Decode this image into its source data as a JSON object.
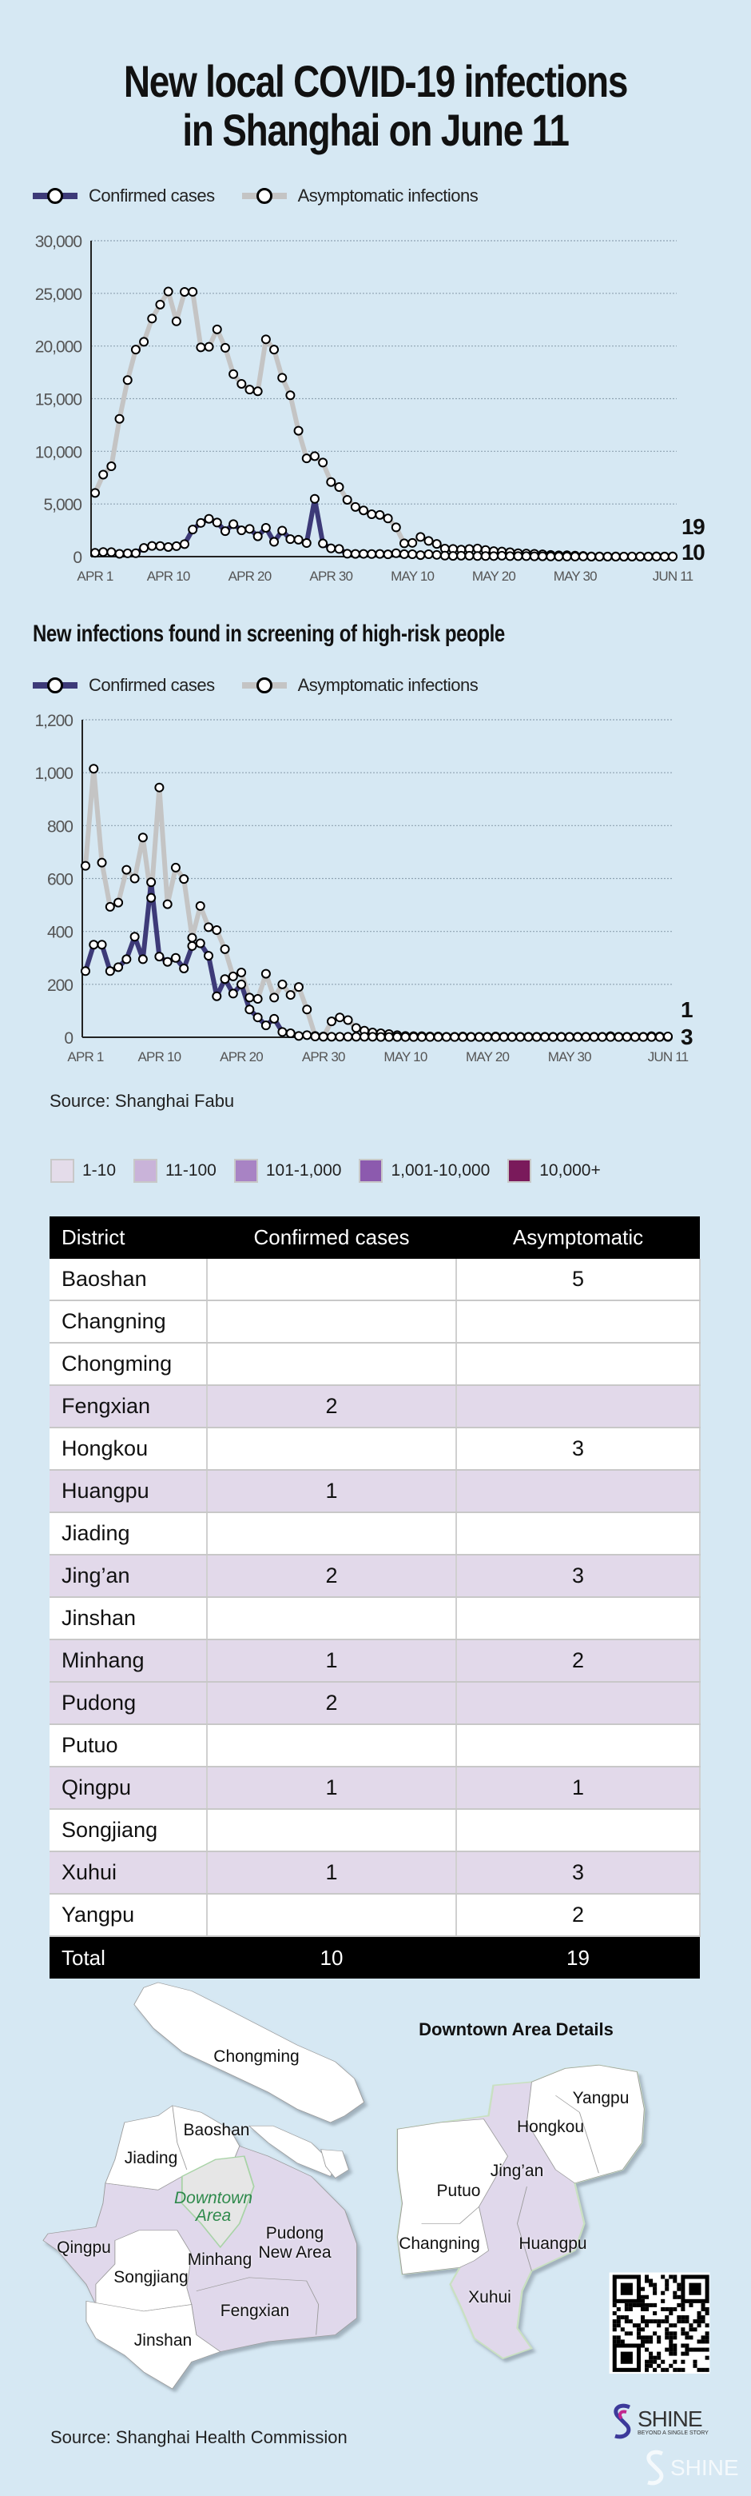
{
  "title": {
    "line1": "New local COVID-19 infections",
    "line2": "in Shanghai on June 11"
  },
  "legend": {
    "confirmed": "Confirmed cases",
    "asymptomatic": "Asymptomatic infections"
  },
  "colors": {
    "background": "#d6e8f3",
    "confirmed": "#3d3a78",
    "asymptomatic": "#c4c4c4",
    "shade_row": "#e2d9ea"
  },
  "chart_data": [
    {
      "type": "line",
      "title": "New local COVID-19 infections in Shanghai on June 11",
      "xlabel": "",
      "ylabel": "",
      "ylim": [
        0,
        30000
      ],
      "yticks": [
        "0",
        "5,000",
        "10,000",
        "15,000",
        "20,000",
        "25,000",
        "30,000"
      ],
      "ytick_values": [
        0,
        5000,
        10000,
        15000,
        20000,
        25000,
        30000
      ],
      "xticks": [
        {
          "label": "APR 1",
          "index": 0
        },
        {
          "label": "APR 10",
          "index": 9
        },
        {
          "label": "APR 20",
          "index": 19
        },
        {
          "label": "APR 30",
          "index": 29
        },
        {
          "label": "MAY 10",
          "index": 39
        },
        {
          "label": "MAY 20",
          "index": 49
        },
        {
          "label": "MAY 30",
          "index": 59
        },
        {
          "label": "JUN 11",
          "index": 71
        }
      ],
      "grid": true,
      "legend_position": "top-left",
      "x_range": "Apr 1 - Jun 11",
      "end_labels": [
        "19",
        "10"
      ],
      "series": [
        {
          "name": "Asymptomatic infections",
          "values": [
            6051,
            7788,
            8581,
            13086,
            16766,
            19660,
            20398,
            22609,
            23937,
            25173,
            22348,
            25141,
            25146,
            19872,
            19923,
            21582,
            19831,
            17332,
            16407,
            15861,
            15698,
            20634,
            19657,
            16983,
            15319,
            11956,
            9330,
            9545,
            8932,
            7084,
            6606,
            5395,
            4722,
            4390,
            4024,
            3961,
            3625,
            2780,
            1259,
            1305,
            1869,
            1487,
            1203,
            759,
            730,
            669,
            719,
            767,
            626,
            522,
            480,
            422,
            324,
            290,
            270,
            215,
            162,
            122,
            129,
            93,
            67,
            15,
            15,
            12,
            21,
            4,
            10,
            13,
            6,
            25,
            8,
            19
          ]
        },
        {
          "name": "Confirmed cases",
          "values": [
            358,
            438,
            425,
            268,
            311,
            322,
            824,
            1015,
            1006,
            914,
            994,
            1189,
            2573,
            3200,
            3590,
            3238,
            2417,
            3084,
            2494,
            2634,
            1931,
            2736,
            1401,
            2472,
            1661,
            1606,
            1292,
            5487,
            1249,
            788,
            727,
            274,
            260,
            261,
            245,
            253,
            215,
            322,
            234,
            228,
            144,
            227,
            166,
            96,
            69,
            87,
            82,
            55,
            58,
            52,
            84,
            45,
            48,
            44,
            29,
            31,
            20,
            7,
            10,
            8,
            15,
            4,
            1,
            2,
            4,
            3,
            6,
            11,
            4,
            9,
            4,
            10
          ]
        }
      ]
    },
    {
      "type": "line",
      "title": "New infections found in screening of high-risk people",
      "xlabel": "",
      "ylabel": "",
      "ylim": [
        0,
        1200
      ],
      "yticks": [
        "0",
        "200",
        "400",
        "600",
        "800",
        "1,000",
        "1,200"
      ],
      "ytick_values": [
        0,
        200,
        400,
        600,
        800,
        1000,
        1200
      ],
      "xticks": [
        {
          "label": "APR 1",
          "index": 0
        },
        {
          "label": "APR 10",
          "index": 9
        },
        {
          "label": "APR 20",
          "index": 19
        },
        {
          "label": "APR 30",
          "index": 29
        },
        {
          "label": "MAY 10",
          "index": 39
        },
        {
          "label": "MAY 20",
          "index": 49
        },
        {
          "label": "MAY 30",
          "index": 59
        },
        {
          "label": "JUN 11",
          "index": 71
        }
      ],
      "grid": true,
      "legend_position": "top-left",
      "end_labels": [
        "1",
        "3"
      ],
      "series": [
        {
          "name": "Asymptomatic infections",
          "values": [
            648,
            1015,
            660,
            493,
            509,
            633,
            600,
            755,
            527,
            944,
            503,
            641,
            598,
            376,
            496,
            416,
            405,
            333,
            230,
            245,
            150,
            145,
            240,
            150,
            200,
            160,
            190,
            105,
            5,
            3,
            60,
            75,
            65,
            35,
            25,
            18,
            15,
            12,
            8,
            5,
            4,
            4,
            3,
            3,
            2,
            2,
            3,
            2,
            2,
            2,
            3,
            2,
            2,
            2,
            2,
            2,
            2,
            2,
            2,
            2,
            2,
            2,
            2,
            2,
            4,
            2,
            2,
            2,
            2,
            4,
            3,
            1
          ]
        },
        {
          "name": "Confirmed cases",
          "values": [
            250,
            350,
            350,
            250,
            265,
            295,
            380,
            295,
            586,
            305,
            285,
            300,
            260,
            345,
            355,
            308,
            155,
            220,
            165,
            200,
            105,
            75,
            45,
            70,
            20,
            15,
            5,
            8,
            3,
            2,
            2,
            2,
            2,
            2,
            2,
            2,
            1,
            1,
            1,
            1,
            1,
            1,
            1,
            1,
            1,
            1,
            1,
            1,
            1,
            1,
            1,
            1,
            1,
            1,
            1,
            1,
            1,
            1,
            1,
            1,
            1,
            1,
            1,
            1,
            1,
            1,
            1,
            1,
            1,
            1,
            1,
            3
          ]
        }
      ]
    }
  ],
  "subtitle2": "New infections found in screening of high-risk people",
  "source1": "Source: Shanghai Fabu",
  "color_scale": [
    {
      "label": "1-10",
      "color": "#e4dcea"
    },
    {
      "label": "11-100",
      "color": "#c9b3d9"
    },
    {
      "label": "101-1,000",
      "color": "#a883c4"
    },
    {
      "label": "1,001-10,000",
      "color": "#8c5aae"
    },
    {
      "label": "10,000+",
      "color": "#7a1a5b"
    }
  ],
  "table": {
    "headers": [
      "District",
      "Confirmed cases",
      "Asymptomatic"
    ],
    "rows": [
      {
        "district": "Baoshan",
        "confirmed": "",
        "asymptomatic": "5",
        "shade": false
      },
      {
        "district": "Changning",
        "confirmed": "",
        "asymptomatic": "",
        "shade": false
      },
      {
        "district": "Chongming",
        "confirmed": "",
        "asymptomatic": "",
        "shade": false
      },
      {
        "district": "Fengxian",
        "confirmed": "2",
        "asymptomatic": "",
        "shade": true
      },
      {
        "district": "Hongkou",
        "confirmed": "",
        "asymptomatic": "3",
        "shade": false
      },
      {
        "district": "Huangpu",
        "confirmed": "1",
        "asymptomatic": "",
        "shade": true
      },
      {
        "district": "Jiading",
        "confirmed": "",
        "asymptomatic": "",
        "shade": false
      },
      {
        "district": "Jing’an",
        "confirmed": "2",
        "asymptomatic": "3",
        "shade": true
      },
      {
        "district": "Jinshan",
        "confirmed": "",
        "asymptomatic": "",
        "shade": false
      },
      {
        "district": "Minhang",
        "confirmed": "1",
        "asymptomatic": "2",
        "shade": true
      },
      {
        "district": "Pudong",
        "confirmed": "2",
        "asymptomatic": "",
        "shade": true
      },
      {
        "district": "Putuo",
        "confirmed": "",
        "asymptomatic": "",
        "shade": false
      },
      {
        "district": "Qingpu",
        "confirmed": "1",
        "asymptomatic": "1",
        "shade": true
      },
      {
        "district": "Songjiang",
        "confirmed": "",
        "asymptomatic": "",
        "shade": false
      },
      {
        "district": "Xuhui",
        "confirmed": "1",
        "asymptomatic": "3",
        "shade": true
      },
      {
        "district": "Yangpu",
        "confirmed": "",
        "asymptomatic": "2",
        "shade": false
      }
    ],
    "total": {
      "label": "Total",
      "confirmed": "10",
      "asymptomatic": "19"
    }
  },
  "map": {
    "labels": {
      "chongming": "Chongming",
      "baoshan": "Baoshan",
      "jiading": "Jiading",
      "downtown1": "Downtown",
      "downtown2": "Area",
      "pudong1": "Pudong",
      "pudong2": "New Area",
      "qingpu": "Qingpu",
      "minhang": "Minhang",
      "songjiang": "Songjiang",
      "fengxian": "Fengxian",
      "jinshan": "Jinshan"
    },
    "downtown_title": "Downtown Area Details",
    "downtown_labels": {
      "yangpu": "Yangpu",
      "hongkou": "Hongkou",
      "jingan": "Jing’an",
      "putuo": "Putuo",
      "changning": "Changning",
      "huangpu": "Huangpu",
      "xuhui": "Xuhui"
    }
  },
  "source2": "Source: Shanghai Health Commission",
  "logo": {
    "name": "SHINE",
    "tagline": "BEYOND A SINGLE STORY"
  }
}
